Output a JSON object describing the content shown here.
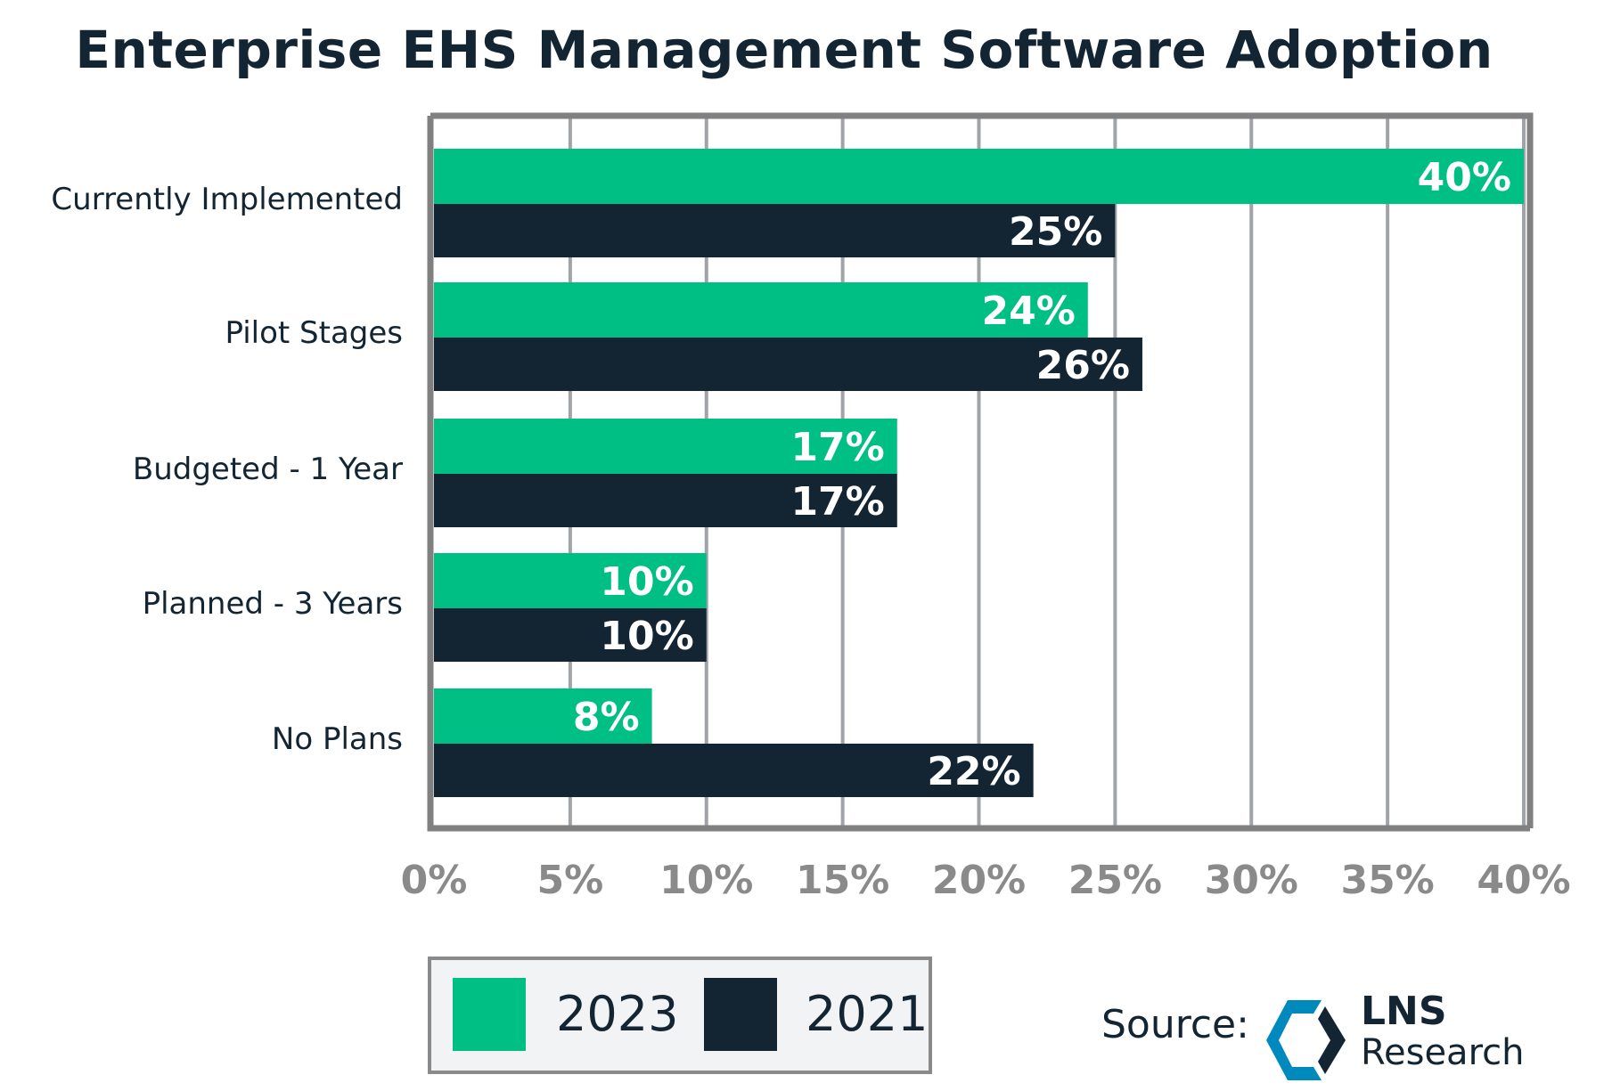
{
  "chart_data": {
    "type": "bar",
    "orientation": "horizontal",
    "title": "Enterprise EHS Management Software Adoption",
    "categories": [
      "Currently Implemented",
      "Pilot Stages",
      "Budgeted - 1 Year",
      "Planned - 3 Years",
      "No Plans"
    ],
    "series": [
      {
        "name": "2023",
        "color": "#00BF84",
        "values": [
          40,
          24,
          17,
          10,
          8
        ]
      },
      {
        "name": "2021",
        "color": "#132532",
        "values": [
          25,
          26,
          17,
          10,
          22
        ]
      }
    ],
    "xlim": [
      0,
      40
    ],
    "xticks": [
      "0%",
      "5%",
      "10%",
      "15%",
      "20%",
      "25%",
      "30%",
      "35%",
      "40%"
    ],
    "grid": true,
    "legend": "bottom-left"
  },
  "source": {
    "label": "Source:",
    "logo_text": "LNS",
    "logo_subtext": "Research",
    "logo_colors": [
      "#0089BD",
      "#132532"
    ]
  }
}
